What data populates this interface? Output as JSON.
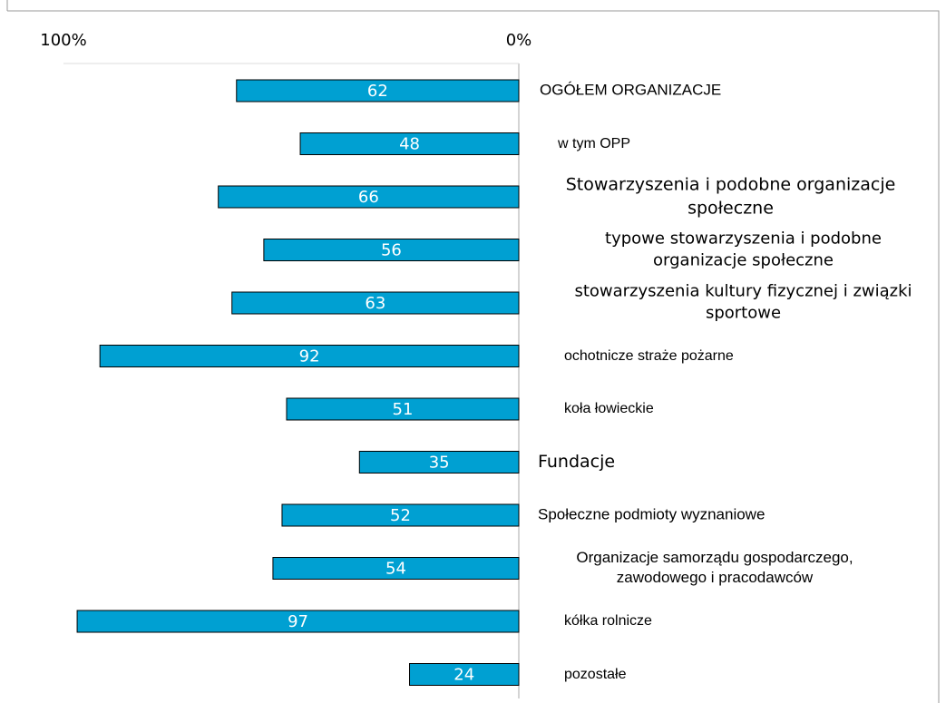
{
  "chart_data": {
    "type": "bar",
    "orientation": "horizontal",
    "categories": [
      "OGÓŁEM ORGANIZACJE",
      "w tym OPP",
      "Stowarzyszenia i podobne organizacje społeczne",
      "typowe stowarzyszenia i podobne organizacje społeczne",
      "stowarzyszenia kultury fizycznej i związki sportowe",
      "ochotnicze straże pożarne",
      "koła łowieckie",
      "Fundacje",
      "Społeczne podmioty wyznaniowe",
      "Organizacje samorządu gospodarczego, zawodowego i pracodawców",
      "kółka rolnicze",
      "pozostałe"
    ],
    "values": [
      62,
      48,
      66,
      56,
      63,
      92,
      51,
      35,
      52,
      54,
      97,
      24
    ],
    "color": "#00a0d2",
    "xlim": [
      100,
      0
    ],
    "xticks": [
      {
        "value": 100,
        "label": "100%"
      },
      {
        "value": 0,
        "label": "0%"
      }
    ]
  }
}
